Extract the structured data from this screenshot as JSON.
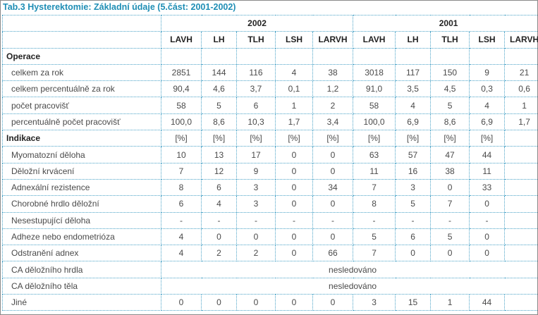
{
  "title": "Tab.3 Hysterektomie: Základní údaje (5.část: 2001-2002)",
  "years": [
    "2002",
    "2001"
  ],
  "columns": [
    "LAVH",
    "LH",
    "TLH",
    "LSH",
    "LARVH",
    "LAVH",
    "LH",
    "TLH",
    "LSH",
    "LARVH"
  ],
  "rows": [
    {
      "type": "header",
      "label": "Operace"
    },
    {
      "type": "data",
      "label": "celkem za rok",
      "values": [
        "2851",
        "144",
        "116",
        "4",
        "38",
        "3018",
        "117",
        "150",
        "9",
        "21"
      ]
    },
    {
      "type": "data",
      "label": "celkem percentuálně za rok",
      "values": [
        "90,4",
        "4,6",
        "3,7",
        "0,1",
        "1,2",
        "91,0",
        "3,5",
        "4,5",
        "0,3",
        "0,6"
      ]
    },
    {
      "type": "data",
      "label": "počet pracovišť",
      "values": [
        "58",
        "5",
        "6",
        "1",
        "2",
        "58",
        "4",
        "5",
        "4",
        "1"
      ]
    },
    {
      "type": "data",
      "label": "percentuálně počet pracovišť",
      "values": [
        "100,0",
        "8,6",
        "10,3",
        "1,7",
        "3,4",
        "100,0",
        "6,9",
        "8,6",
        "6,9",
        "1,7"
      ]
    },
    {
      "type": "header",
      "label": "Indikace",
      "values": [
        "[%]",
        "[%]",
        "[%]",
        "[%]",
        "[%]",
        "[%]",
        "[%]",
        "[%]",
        "[%]",
        ""
      ]
    },
    {
      "type": "data",
      "label": "Myomatozní děloha",
      "values": [
        "10",
        "13",
        "17",
        "0",
        "0",
        "63",
        "57",
        "47",
        "44",
        ""
      ]
    },
    {
      "type": "data",
      "label": "Děložní krvácení",
      "values": [
        "7",
        "12",
        "9",
        "0",
        "0",
        "11",
        "16",
        "38",
        "11",
        ""
      ]
    },
    {
      "type": "data",
      "label": "Adnexální rezistence",
      "values": [
        "8",
        "6",
        "3",
        "0",
        "34",
        "7",
        "3",
        "0",
        "33",
        ""
      ]
    },
    {
      "type": "data",
      "label": "Chorobné hrdlo děložní",
      "values": [
        "6",
        "4",
        "3",
        "0",
        "0",
        "8",
        "5",
        "7",
        "0",
        ""
      ]
    },
    {
      "type": "data",
      "label": "Nesestupující děloha",
      "values": [
        "-",
        "-",
        "-",
        "-",
        "-",
        "-",
        "-",
        "-",
        "-",
        ""
      ]
    },
    {
      "type": "data",
      "label": "Adheze nebo endometrióza",
      "values": [
        "4",
        "0",
        "0",
        "0",
        "0",
        "5",
        "6",
        "5",
        "0",
        ""
      ]
    },
    {
      "type": "data",
      "label": "Odstranění adnex",
      "values": [
        "4",
        "2",
        "2",
        "0",
        "66",
        "7",
        "0",
        "0",
        "0",
        ""
      ]
    },
    {
      "type": "merged",
      "label": "CA děložního hrdla",
      "text": "nesledováno"
    },
    {
      "type": "merged",
      "label": "CA děložního těla",
      "text": "nesledováno"
    },
    {
      "type": "data",
      "label": "Jiné",
      "values": [
        "0",
        "0",
        "0",
        "0",
        "0",
        "3",
        "15",
        "1",
        "44",
        ""
      ]
    }
  ]
}
